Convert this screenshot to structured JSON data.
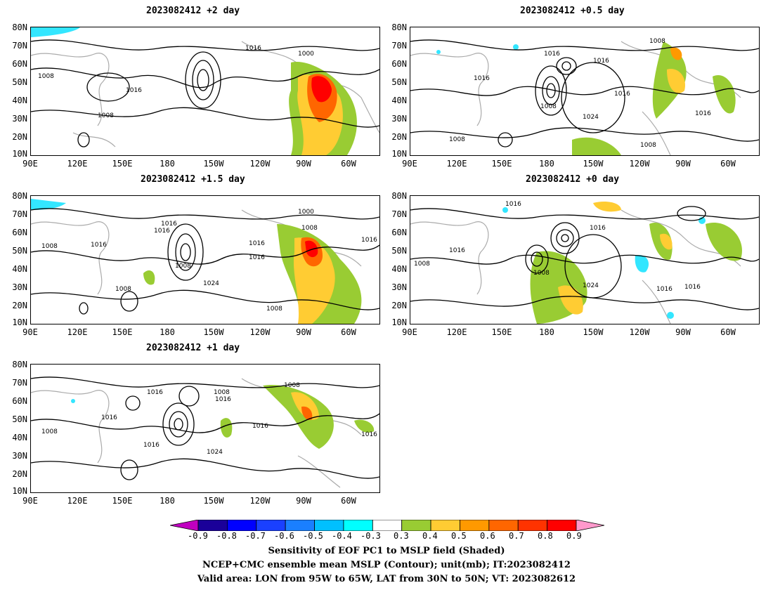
{
  "panels": [
    {
      "title": "2023082412 +2 day"
    },
    {
      "title": "2023082412 +0.5 day"
    },
    {
      "title": "2023082412 +1.5 day"
    },
    {
      "title": "2023082412 +0 day"
    },
    {
      "title": "2023082412 +1 day"
    }
  ],
  "y_ticks": [
    "80N",
    "70N",
    "60N",
    "50N",
    "40N",
    "30N",
    "20N",
    "10N"
  ],
  "x_ticks": [
    "90E",
    "120E",
    "150E",
    "180",
    "150W",
    "120W",
    "90W",
    "60W"
  ],
  "contour_labels": [
    "1016",
    "1008",
    "1000",
    "1024"
  ],
  "colorbar": {
    "ticks": [
      "-0.9",
      "-0.8",
      "-0.7",
      "-0.6",
      "-0.5",
      "-0.4",
      "-0.3",
      "0.3",
      "0.4",
      "0.5",
      "0.6",
      "0.7",
      "0.8",
      "0.9"
    ],
    "colors": [
      "#c000c0",
      "#1a0099",
      "#0000ff",
      "#1a40ff",
      "#1a7fff",
      "#00c0ff",
      "#00ffff",
      "#ffffff",
      "#99cc33",
      "#ffcc33",
      "#ff9900",
      "#ff6600",
      "#ff3300",
      "#ff0000",
      "#ff99cc"
    ]
  },
  "captions": {
    "line1": "Sensitivity of EOF PC1 to MSLP field (Shaded)",
    "line2": "NCEP+CMC ensemble mean MSLP (Contour); unit(mb); IT:2023082412",
    "line3": "Valid area: LON from 95W to 65W, LAT from 30N to 50N; VT: 2023082612"
  }
}
